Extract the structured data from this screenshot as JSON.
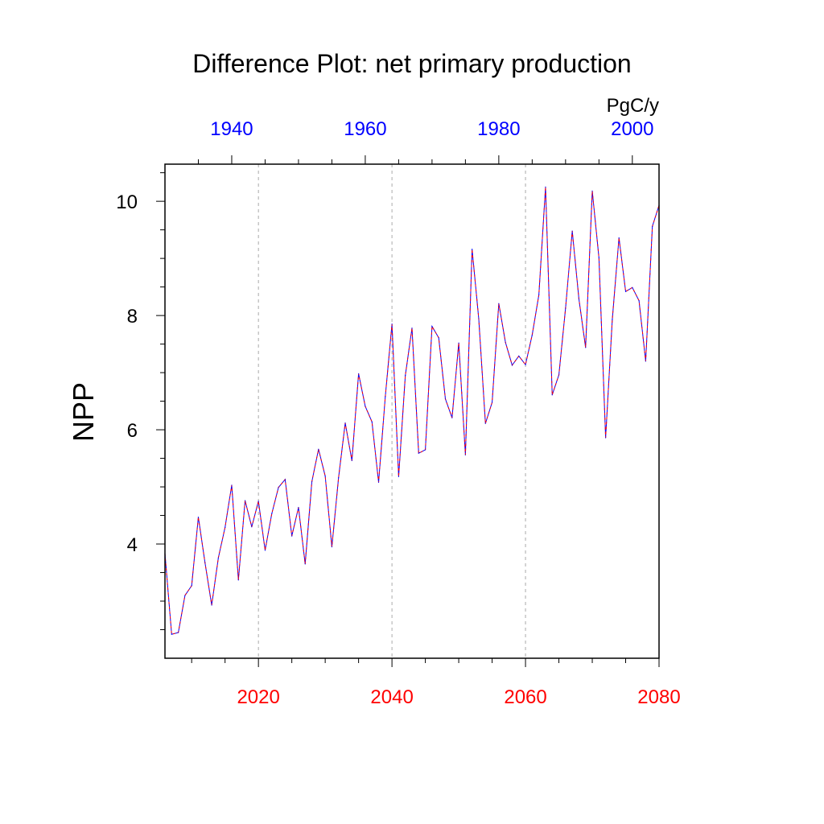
{
  "chart_data": {
    "type": "line",
    "title": "Difference Plot: net primary production",
    "ylabel": "NPP",
    "units": "PgC/y",
    "xlim_bottom": [
      2006,
      2080
    ],
    "xlim_top": [
      1930,
      2004
    ],
    "ylim": [
      2.0,
      10.65
    ],
    "x_ticks_bottom": [
      "2020",
      "2040",
      "2060",
      "2080"
    ],
    "x_ticks_top": [
      "1940",
      "1960",
      "1980",
      "2000"
    ],
    "y_ticks": [
      "4",
      "6",
      "8",
      "10"
    ],
    "grid": "vertical dashed at labeled bottom ticks",
    "colors": {
      "series_a": "#0000ff",
      "series_b": "#ff0000",
      "bottom_axis": "#ff0000",
      "top_axis": "#0000ff"
    },
    "series": [
      {
        "name": "difference",
        "x": [
          2006,
          2007,
          2008,
          2009,
          2010,
          2011,
          2012,
          2013,
          2014,
          2015,
          2016,
          2017,
          2018,
          2019,
          2020,
          2021,
          2022,
          2023,
          2024,
          2025,
          2026,
          2027,
          2028,
          2029,
          2030,
          2031,
          2032,
          2033,
          2034,
          2035,
          2036,
          2037,
          2038,
          2039,
          2040,
          2041,
          2042,
          2043,
          2044,
          2045,
          2046,
          2047,
          2048,
          2049,
          2050,
          2051,
          2052,
          2053,
          2054,
          2055,
          2056,
          2057,
          2058,
          2059,
          2060,
          2061,
          2062,
          2063,
          2064,
          2065,
          2066,
          2067,
          2068,
          2069,
          2070,
          2071,
          2072,
          2073,
          2074,
          2075,
          2076,
          2077,
          2078,
          2079,
          2080
        ],
        "values": [
          3.83,
          2.42,
          2.45,
          3.1,
          3.27,
          4.47,
          3.67,
          2.93,
          3.76,
          4.29,
          5.03,
          3.37,
          4.76,
          4.3,
          4.75,
          3.89,
          4.53,
          4.99,
          5.13,
          4.14,
          4.64,
          3.65,
          5.09,
          5.66,
          5.19,
          3.95,
          5.16,
          6.12,
          5.46,
          6.98,
          6.41,
          6.14,
          5.08,
          6.58,
          7.85,
          5.18,
          6.95,
          7.78,
          5.59,
          5.65,
          7.81,
          7.61,
          6.54,
          6.21,
          7.52,
          5.56,
          9.16,
          7.94,
          6.11,
          6.48,
          8.21,
          7.53,
          7.13,
          7.29,
          7.14,
          7.66,
          8.36,
          10.25,
          6.61,
          6.96,
          8.13,
          9.48,
          8.29,
          7.44,
          10.18,
          9.01,
          5.86,
          7.93,
          9.36,
          8.42,
          8.49,
          8.26,
          7.2,
          9.56,
          9.93
        ]
      }
    ]
  }
}
